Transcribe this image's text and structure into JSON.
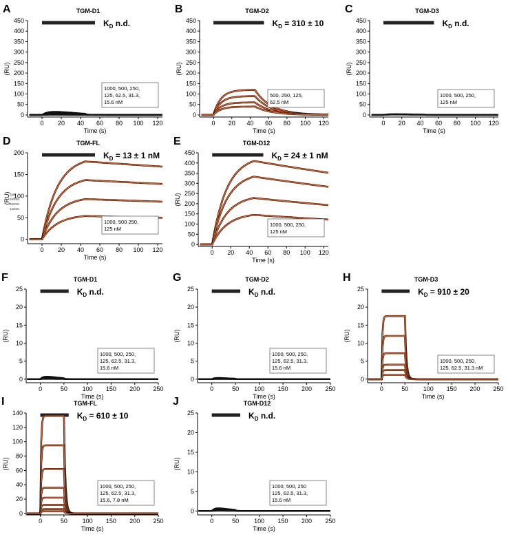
{
  "figure": {
    "fit_color": "#e8642a",
    "data_color": "#111111"
  },
  "chart_data": [
    {
      "letter": "A",
      "type": "line",
      "title": "TGM-D1",
      "kd": "n.d.",
      "xlabel": "Time (s)",
      "ylabel": "(RU)",
      "xlim": [
        -15,
        125
      ],
      "ylim": [
        -10,
        450
      ],
      "xticks": [
        0,
        20,
        40,
        60,
        80,
        100,
        120
      ],
      "yticks": [
        0,
        50,
        100,
        150,
        200,
        250,
        300,
        350,
        400,
        450
      ],
      "injection": [
        0,
        45
      ],
      "conc_text": [
        "1000,      500,     250,",
        "125,          62.5,    31.3,",
        "15.6 nM"
      ],
      "series": [
        {
          "name": "sensorgrams",
          "amplitudes": [
            22,
            18,
            14,
            10,
            6,
            3,
            1
          ]
        }
      ],
      "fit": false
    },
    {
      "letter": "B",
      "type": "line",
      "title": "TGM-D2",
      "kd": "= 310 ± 10",
      "xlabel": "Time (s)",
      "ylabel": "(RU)",
      "xlim": [
        -15,
        125
      ],
      "ylim": [
        -10,
        450
      ],
      "xticks": [
        0,
        20,
        40,
        60,
        80,
        100,
        120
      ],
      "yticks": [
        0,
        50,
        100,
        150,
        200,
        250,
        300,
        350,
        400,
        450
      ],
      "injection": [
        0,
        45
      ],
      "conc_text": [
        "500,      250,      125,",
        "62.5 nM"
      ],
      "series": [
        {
          "name": "500 nM",
          "rmax": 120
        },
        {
          "name": "250 nM",
          "rmax": 90
        },
        {
          "name": "125 nM",
          "rmax": 60
        },
        {
          "name": "62.5 nM",
          "rmax": 40
        }
      ],
      "fit": true
    },
    {
      "letter": "C",
      "type": "line",
      "title": "TGM-D3",
      "kd": "n.d.",
      "xlabel": "Time (s)",
      "ylabel": "(RU)",
      "xlim": [
        -15,
        125
      ],
      "ylim": [
        -10,
        450
      ],
      "xticks": [
        0,
        20,
        40,
        60,
        80,
        100,
        120
      ],
      "yticks": [
        0,
        50,
        100,
        150,
        200,
        250,
        300,
        350,
        400,
        450
      ],
      "injection": [
        0,
        45
      ],
      "conc_text": [
        "1000,      500,      250,",
        "125 nM"
      ],
      "series": [
        {
          "name": "sensorgrams",
          "amplitudes": [
            6,
            4,
            3,
            2
          ]
        }
      ],
      "fit": false
    },
    {
      "letter": "D",
      "type": "line",
      "title": "TGM-FL",
      "kd": "= 13 ± 1 nM",
      "xlabel": "Time (s)",
      "ylabel": "(RU)",
      "xlim": [
        -15,
        125
      ],
      "ylim": [
        -10,
        200
      ],
      "xticks": [
        0,
        20,
        40,
        60,
        80,
        100,
        120
      ],
      "yticks": [
        0,
        50,
        100,
        150,
        200
      ],
      "injection": [
        0,
        45
      ],
      "conc_text": [
        "1000,      500       250,",
        "125 nM"
      ],
      "legend_small": [
        "1µM",
        "500nM",
        "250nM",
        "125nM"
      ],
      "series": [
        {
          "name": "1000 nM",
          "peak": 180,
          "end": 168
        },
        {
          "name": "500 nM",
          "peak": 137,
          "end": 128
        },
        {
          "name": "250 nM",
          "peak": 93,
          "end": 87
        },
        {
          "name": "125 nM",
          "peak": 54,
          "end": 50
        }
      ],
      "fit": true
    },
    {
      "letter": "E",
      "type": "line",
      "title": "TGM-D12",
      "kd": "= 24 ± 1 nM",
      "xlabel": "Time (s)",
      "ylabel": "(RU)",
      "xlim": [
        -15,
        125
      ],
      "ylim": [
        -10,
        450
      ],
      "xticks": [
        0,
        20,
        40,
        60,
        80,
        100,
        120
      ],
      "yticks": [
        0,
        50,
        100,
        150,
        200,
        250,
        300,
        350,
        400,
        450
      ],
      "injection": [
        0,
        45
      ],
      "conc_text": [
        "1000,      500,      250,",
        "125 nM"
      ],
      "series": [
        {
          "name": "1000 nM",
          "peak": 410,
          "end": 352
        },
        {
          "name": "500 nM",
          "peak": 333,
          "end": 283
        },
        {
          "name": "250 nM",
          "peak": 228,
          "end": 193
        },
        {
          "name": "125 nM",
          "peak": 145,
          "end": 122
        }
      ],
      "fit": true
    },
    {
      "letter": "F",
      "type": "line",
      "title": "TGM-D1",
      "kd": "n.d.",
      "xlabel": "Time (s)",
      "ylabel": "(RU)",
      "xlim": [
        -30,
        250
      ],
      "ylim": [
        -1,
        25
      ],
      "xticks": [
        0,
        50,
        100,
        150,
        200,
        250
      ],
      "yticks": [
        0,
        5,
        10,
        15,
        20,
        25
      ],
      "injection": [
        0,
        50
      ],
      "conc_text": [
        "1000,      500,     250,",
        "125,          62.5,    31.3,",
        "15.6 nM"
      ],
      "series": [
        {
          "name": "sensorgrams",
          "amplitudes": [
            1,
            0.8,
            0.6,
            0.4,
            0.3,
            0.2,
            0.1
          ]
        }
      ],
      "fit": false
    },
    {
      "letter": "G",
      "type": "line",
      "title": "TGM-D2",
      "kd": "n.d.",
      "xlabel": "Time (s)",
      "ylabel": "(RU)",
      "xlim": [
        -30,
        250
      ],
      "ylim": [
        -1,
        25
      ],
      "xticks": [
        0,
        50,
        100,
        150,
        200,
        250
      ],
      "yticks": [
        0,
        5,
        10,
        15,
        20,
        25
      ],
      "injection": [
        0,
        50
      ],
      "conc_text": [
        "1000,      500,     250,",
        "125,          62.5,    31.3,",
        "15.6 nM"
      ],
      "series": [
        {
          "name": "sensorgrams",
          "amplitudes": [
            0.5,
            0.4,
            0.3,
            0.2,
            0.1,
            0.1,
            0.05
          ]
        }
      ],
      "fit": false
    },
    {
      "letter": "H",
      "type": "line",
      "title": "TGM-D3",
      "kd": "= 910 ± 20",
      "xlabel": "Time (s)",
      "ylabel": "(RU)",
      "xlim": [
        -30,
        250
      ],
      "ylim": [
        -1,
        25
      ],
      "xticks": [
        0,
        50,
        100,
        150,
        200,
        250
      ],
      "yticks": [
        0,
        5,
        10,
        15,
        20,
        25
      ],
      "injection": [
        0,
        50
      ],
      "conc_text": [
        "1000,      500,     250,",
        "125,          62.5,    31.3  nM"
      ],
      "series": [
        {
          "name": "1000 nM",
          "rmax": 17.5
        },
        {
          "name": "500 nM",
          "rmax": 12
        },
        {
          "name": "250 nM",
          "rmax": 7.2
        },
        {
          "name": "125 nM",
          "rmax": 4
        },
        {
          "name": "62.5 nM",
          "rmax": 2.5
        },
        {
          "name": "31.3 nM",
          "rmax": 1.2
        }
      ],
      "fit": true
    },
    {
      "letter": "I",
      "type": "line",
      "title": "TGM-FL",
      "kd": "= 610 ± 10",
      "xlabel": "Time (s)",
      "ylabel": "(RU)",
      "xlim": [
        -30,
        250
      ],
      "ylim": [
        -2,
        140
      ],
      "xticks": [
        0,
        50,
        100,
        150,
        200,
        250
      ],
      "yticks": [
        0,
        20,
        40,
        60,
        80,
        100,
        120,
        140
      ],
      "injection": [
        0,
        50
      ],
      "conc_text": [
        "1000,      500,     250,",
        "125,          62.5,    31.3,",
        "15.6,        7.8 nM"
      ],
      "series": [
        {
          "name": "1000 nM",
          "rmax": 136
        },
        {
          "name": "500 nM",
          "rmax": 95
        },
        {
          "name": "250 nM",
          "rmax": 62
        },
        {
          "name": "125 nM",
          "rmax": 36
        },
        {
          "name": "62.5 nM",
          "rmax": 22
        },
        {
          "name": "31.3 nM",
          "rmax": 12
        },
        {
          "name": "15.6 nM",
          "rmax": 6
        },
        {
          "name": "7.8 nM",
          "rmax": 3
        }
      ],
      "fit": true
    },
    {
      "letter": "J",
      "type": "line",
      "title": "TGM-D12",
      "kd": "n.d.",
      "xlabel": "Time (s)",
      "ylabel": "(RU)",
      "xlim": [
        -30,
        250
      ],
      "ylim": [
        -1,
        25
      ],
      "xticks": [
        0,
        50,
        100,
        150,
        200,
        250
      ],
      "yticks": [
        0,
        5,
        10,
        15,
        20,
        25
      ],
      "injection": [
        0,
        50
      ],
      "conc_text": [
        "1000,      500,      250",
        "125,          62.5,     31.3,",
        "15.6 nM"
      ],
      "series": [
        {
          "name": "sensorgrams",
          "amplitudes": [
            1,
            0.8,
            0.6,
            0.4,
            0.3,
            0.2,
            0.1
          ]
        }
      ],
      "fit": false
    }
  ]
}
